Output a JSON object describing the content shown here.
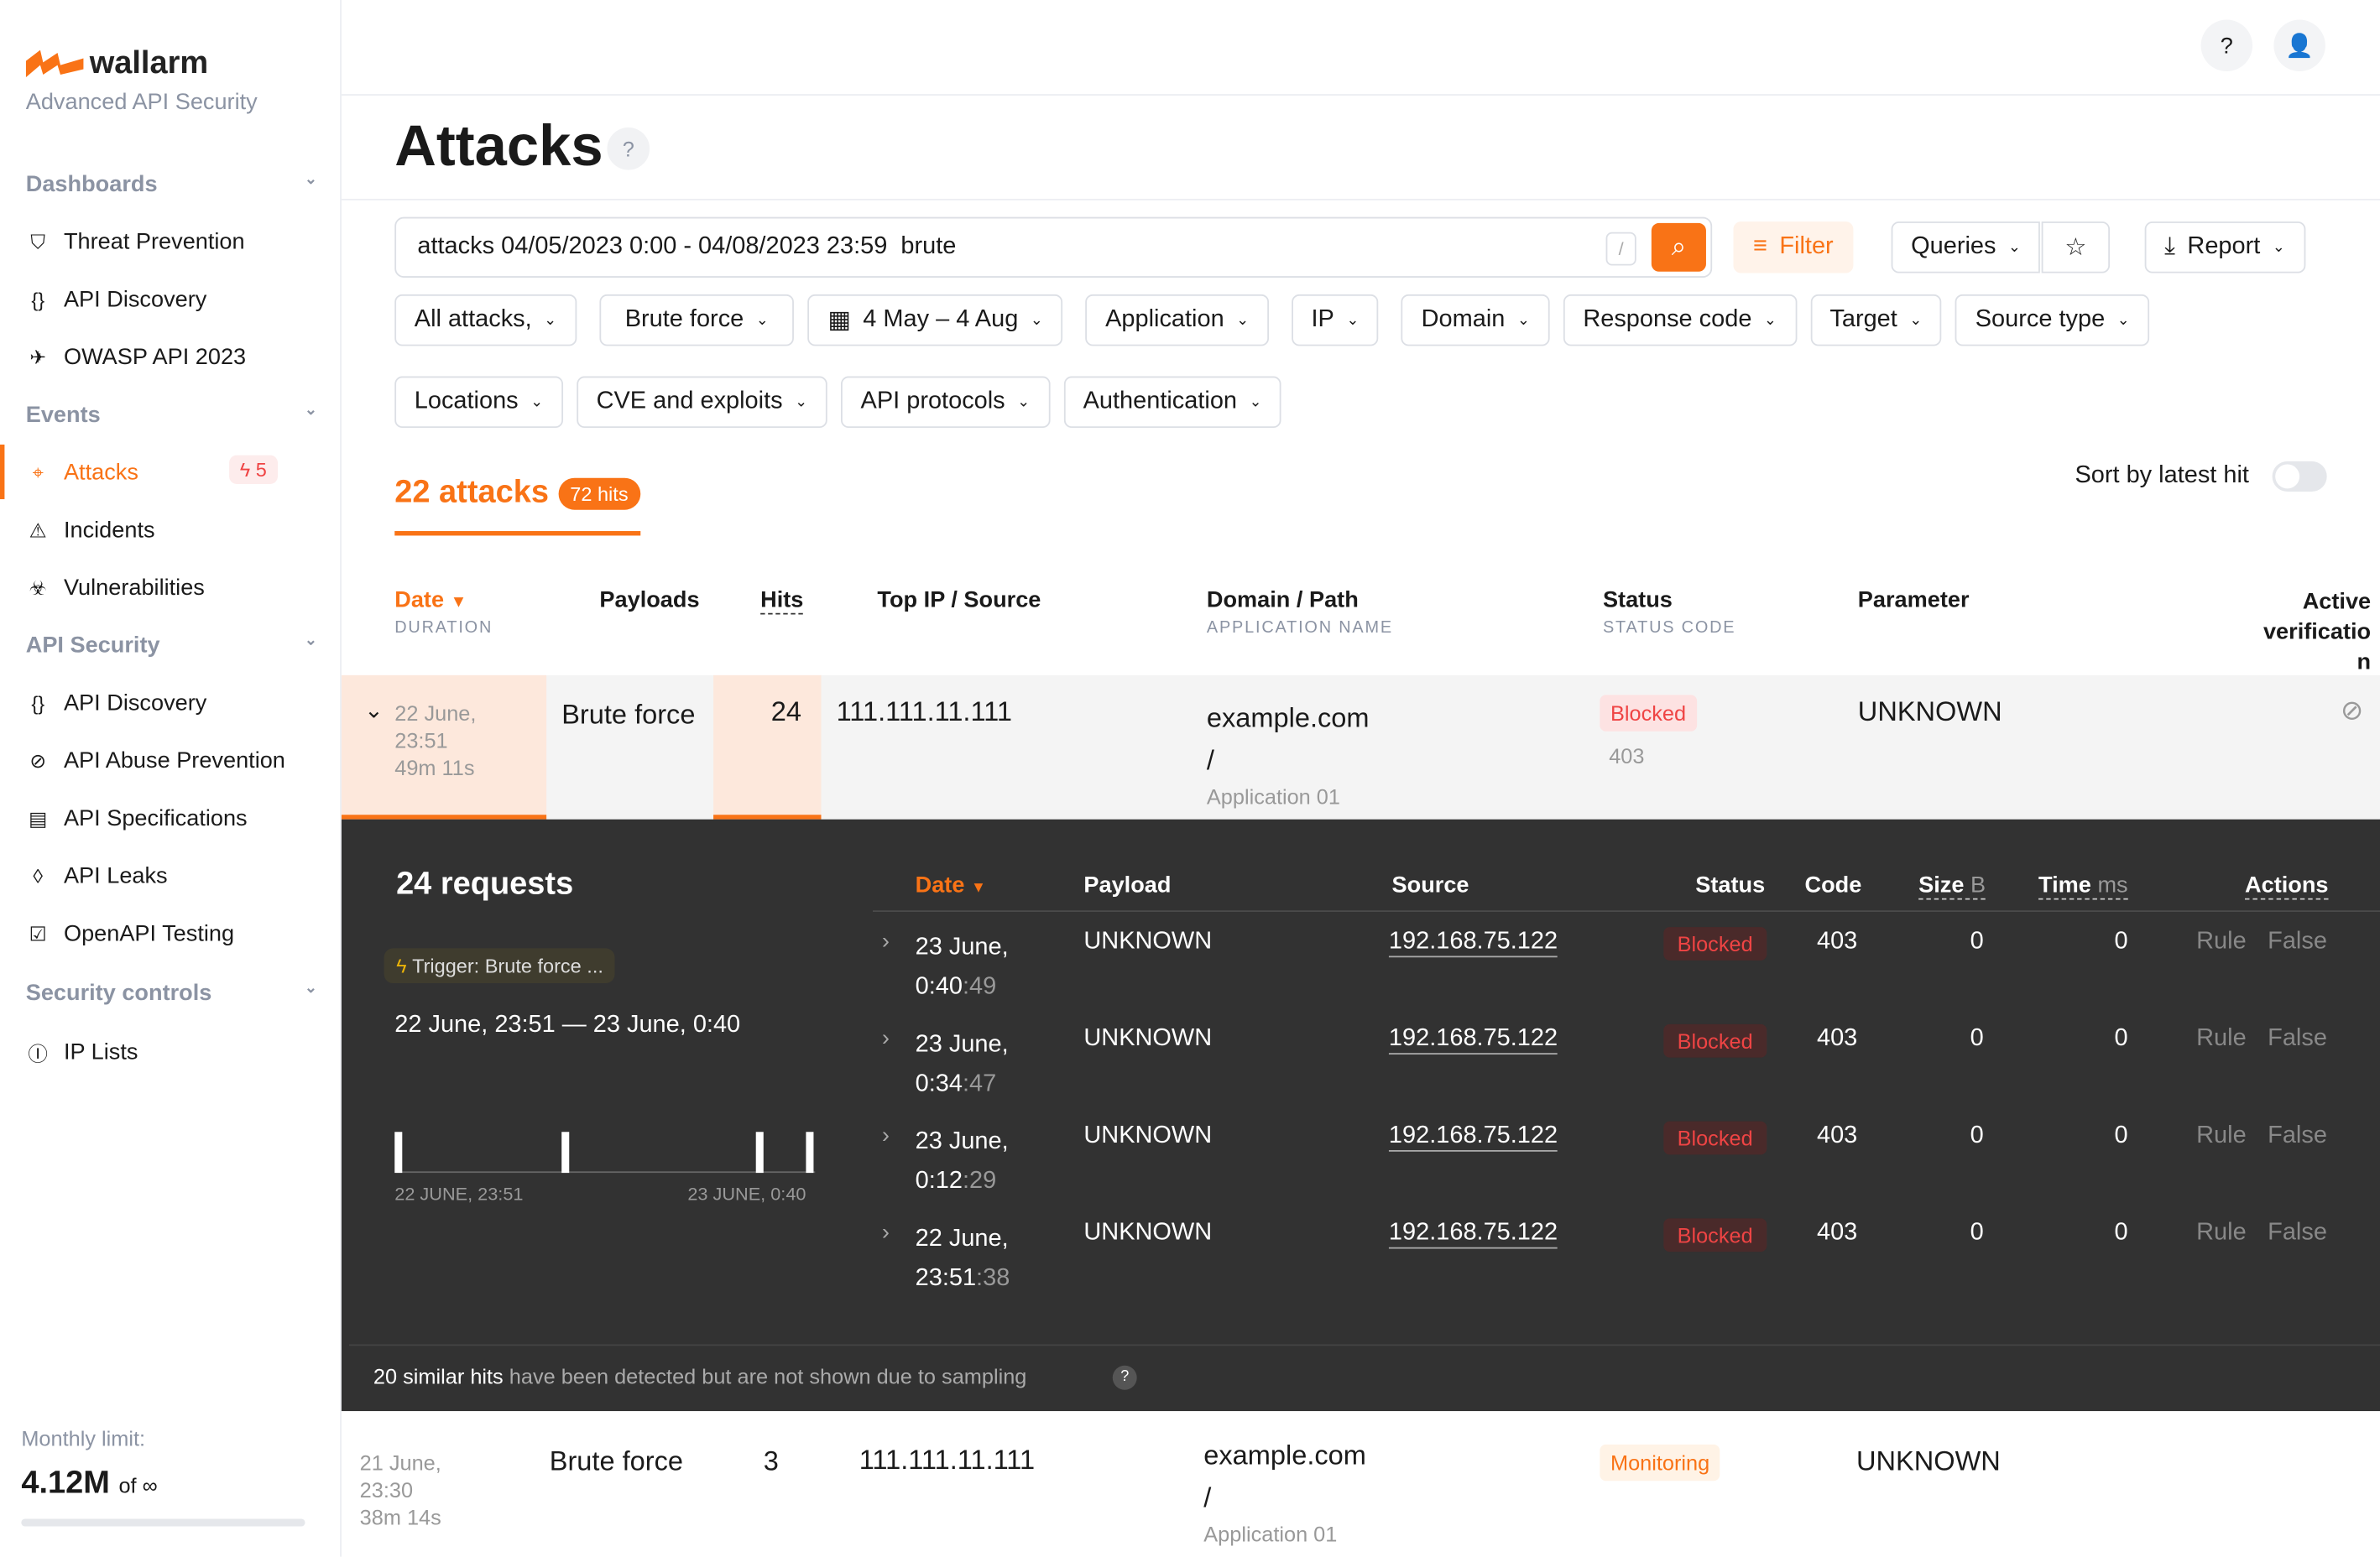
{
  "sidebar": {
    "brand": "wallarm",
    "tagline": "Advanced API Security",
    "sections": [
      {
        "label": "Dashboards"
      },
      {
        "label": "Events"
      },
      {
        "label": "API Security"
      },
      {
        "label": "Security controls"
      }
    ],
    "items": [
      {
        "label": "Threat Prevention",
        "icon": "shield-bolt-icon"
      },
      {
        "label": "API Discovery",
        "icon": "braces-check-icon"
      },
      {
        "label": "OWASP API 2023",
        "icon": "wasp-icon"
      },
      {
        "label": "Attacks",
        "icon": "target-icon",
        "badge": "5"
      },
      {
        "label": "Incidents",
        "icon": "warning-icon"
      },
      {
        "label": "Vulnerabilities",
        "icon": "biohazard-icon"
      },
      {
        "label": "API Discovery",
        "icon": "braces-check-icon"
      },
      {
        "label": "API Abuse Prevention",
        "icon": "robot-icon"
      },
      {
        "label": "API Specifications",
        "icon": "document-icon"
      },
      {
        "label": "API Leaks",
        "icon": "drop-icon"
      },
      {
        "label": "OpenAPI Testing",
        "icon": "checklist-icon"
      },
      {
        "label": "IP Lists",
        "icon": "ip-icon"
      }
    ],
    "monthly_label": "Monthly limit:",
    "monthly_value": "4.12M",
    "monthly_of": "of ∞"
  },
  "header": {
    "title": "Attacks",
    "help": "?"
  },
  "search": {
    "query": "attacks 04/05/2023 0:00 - 04/08/2023 23:59  brute",
    "slash": "/"
  },
  "toolbar": {
    "filter": "Filter",
    "queries": "Queries",
    "report": "Report"
  },
  "filters": [
    "All attacks,",
    "Brute force",
    "4 May – 4 Aug",
    "Application",
    "IP",
    "Domain",
    "Response code",
    "Target",
    "Source type",
    "Locations",
    "CVE and exploits",
    "API protocols",
    "Authentication"
  ],
  "summary": {
    "attacks": "22 attacks",
    "hits": "72 hits",
    "sort_label": "Sort by latest hit",
    "sort_enabled": false
  },
  "columns": {
    "date": "Date",
    "duration": "DURATION",
    "payloads": "Payloads",
    "hits": "Hits",
    "top_ip": "Top IP / Source",
    "domain": "Domain / Path",
    "app": "APPLICATION NAME",
    "status": "Status",
    "status_code": "STATUS CODE",
    "parameter": "Parameter",
    "active": "Active verificatio n"
  },
  "attacks": [
    {
      "date": "22 June,",
      "time": "23:51",
      "duration": "49m 11s",
      "payload": "Brute force",
      "hits": "24",
      "ip": "111.111.11.111",
      "domain": "example.com",
      "path": "/",
      "app": "Application 01",
      "status": "Blocked",
      "code": "403",
      "parameter": "UNKNOWN"
    },
    {
      "date": "21 June,",
      "time": "23:30",
      "duration": "38m 14s",
      "payload": "Brute force",
      "hits": "3",
      "ip": "111.111.11.111",
      "domain": "example.com",
      "path": "/",
      "app": "Application 01",
      "status": "Monitoring",
      "parameter": "UNKNOWN"
    }
  ],
  "details": {
    "title": "24 requests",
    "trigger": "Trigger: Brute force ...",
    "range": "22 June, 23:51 — 23 June, 0:40",
    "axis_start": "22 JUNE, 23:51",
    "axis_end": "23 JUNE, 0:40",
    "columns": {
      "date": "Date",
      "payload": "Payload",
      "source": "Source",
      "status": "Status",
      "code": "Code",
      "size": "Size",
      "size_unit": "B",
      "time": "Time",
      "time_unit": "ms",
      "actions": "Actions"
    },
    "requests": [
      {
        "d1": "23 June,",
        "d2": "0:40",
        "sec": ":49",
        "payload": "UNKNOWN",
        "source": "192.168.75.122",
        "status": "Blocked",
        "code": "403",
        "size": "0",
        "time": "0",
        "rule": "Rule",
        "fp": "False"
      },
      {
        "d1": "23 June,",
        "d2": "0:34",
        "sec": ":47",
        "payload": "UNKNOWN",
        "source": "192.168.75.122",
        "status": "Blocked",
        "code": "403",
        "size": "0",
        "time": "0",
        "rule": "Rule",
        "fp": "False"
      },
      {
        "d1": "23 June,",
        "d2": "0:12",
        "sec": ":29",
        "payload": "UNKNOWN",
        "source": "192.168.75.122",
        "status": "Blocked",
        "code": "403",
        "size": "0",
        "time": "0",
        "rule": "Rule",
        "fp": "False"
      },
      {
        "d1": "22 June,",
        "d2": "23:51",
        "sec": ":38",
        "payload": "UNKNOWN",
        "source": "192.168.75.122",
        "status": "Blocked",
        "code": "403",
        "size": "0",
        "time": "0",
        "rule": "Rule",
        "fp": "False"
      }
    ],
    "sampling_bold": "20 similar hits",
    "sampling_rest": " have been detected but are not shown due to sampling"
  },
  "colors": {
    "accent": "#f97316",
    "blocked": "#ef4444",
    "dark_panel": "#323232"
  }
}
